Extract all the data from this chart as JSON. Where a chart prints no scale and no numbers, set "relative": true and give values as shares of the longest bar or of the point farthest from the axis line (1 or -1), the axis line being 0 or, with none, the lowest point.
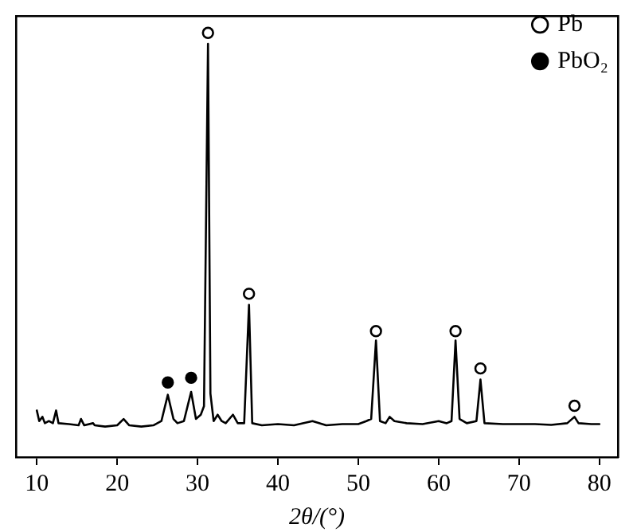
{
  "chart_data": {
    "type": "line",
    "xlabel": "2θ/(°)",
    "relative": true,
    "xlim": [
      7.4,
      82.3
    ],
    "xticks": [
      10,
      20,
      30,
      40,
      50,
      60,
      70,
      80
    ],
    "legend": "top right",
    "grid": false,
    "series": [
      {
        "color": "#000000",
        "x": [
          10.0,
          10.3,
          10.7,
          11.0,
          11.5,
          12.0,
          12.4,
          12.7,
          14,
          15.2,
          15.5,
          15.9,
          17,
          17.2,
          18.5,
          20,
          20.8,
          21.5,
          23,
          24.5,
          25.5,
          26.3,
          27,
          27.5,
          28.3,
          29.2,
          29.8,
          30.4,
          30.8,
          31.3,
          31.6,
          32,
          32.5,
          33,
          33.5,
          34.4,
          35,
          35.8,
          36.4,
          36.8,
          38,
          40,
          42,
          44.3,
          46,
          48,
          50,
          51,
          51.6,
          52.2,
          52.7,
          53.4,
          53.9,
          54.5,
          56,
          58,
          60,
          61,
          61.6,
          62.1,
          62.6,
          63.5,
          64.7,
          65.2,
          65.7,
          68,
          70,
          72,
          74,
          76,
          76.9,
          77.4,
          79,
          80
        ],
        "values": [
          0.11,
          0.085,
          0.095,
          0.08,
          0.085,
          0.08,
          0.11,
          0.08,
          0.078,
          0.075,
          0.09,
          0.075,
          0.08,
          0.075,
          0.072,
          0.075,
          0.09,
          0.075,
          0.072,
          0.075,
          0.085,
          0.147,
          0.09,
          0.08,
          0.085,
          0.154,
          0.09,
          0.1,
          0.12,
          0.974,
          0.15,
          0.085,
          0.1,
          0.085,
          0.08,
          0.1,
          0.08,
          0.08,
          0.359,
          0.08,
          0.075,
          0.078,
          0.075,
          0.085,
          0.075,
          0.078,
          0.078,
          0.085,
          0.09,
          0.275,
          0.085,
          0.08,
          0.095,
          0.085,
          0.08,
          0.078,
          0.085,
          0.08,
          0.085,
          0.275,
          0.09,
          0.08,
          0.085,
          0.183,
          0.08,
          0.078,
          0.078,
          0.078,
          0.076,
          0.08,
          0.095,
          0.08,
          0.078,
          0.078
        ]
      },
      {
        "type": "scatter",
        "name": "Pb",
        "color": "#000000",
        "marker": "circle",
        "x": [
          31.3,
          36.4,
          52.2,
          62.1,
          65.2,
          76.9
        ],
        "values": [
          1.0,
          0.385,
          0.297,
          0.297,
          0.209,
          0.121
        ]
      },
      {
        "type": "scatter",
        "name": "PbO₂",
        "color": "#000000",
        "marker": "circle",
        "x": [
          26.3,
          29.2
        ],
        "values": [
          0.176,
          0.187
        ]
      }
    ]
  }
}
